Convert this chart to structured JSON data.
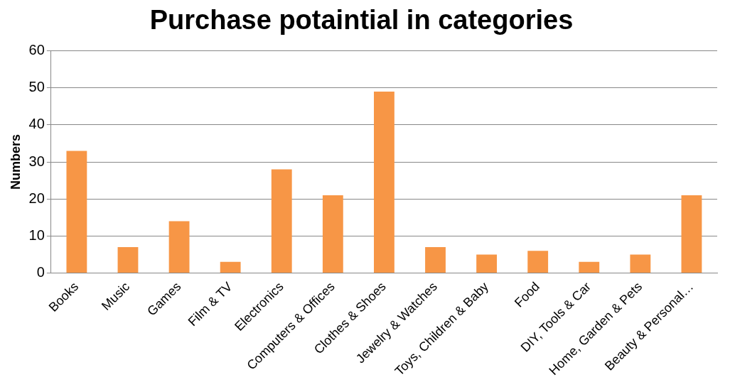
{
  "chart_data": {
    "type": "bar",
    "title": "Purchase potaintial in categories",
    "ylabel": "Numbers",
    "categories": [
      "Books",
      "Music",
      "Games",
      "Film & TV",
      "Electronics",
      "Computers & Offices",
      "Clothes & Shoes",
      "Jewelry & Watches",
      "Toys, Children & Baby",
      "Food",
      "DIY, Tools & Car",
      "Home, Garden & Pets",
      "Beauty & Personal…"
    ],
    "values": [
      33,
      7,
      14,
      3,
      28,
      21,
      49,
      7,
      5,
      6,
      3,
      5,
      21
    ],
    "color": "#f79646",
    "ylim": [
      0,
      60
    ],
    "yticks": [
      0,
      10,
      20,
      30,
      40,
      50,
      60
    ],
    "grid": "y",
    "legend": false
  }
}
